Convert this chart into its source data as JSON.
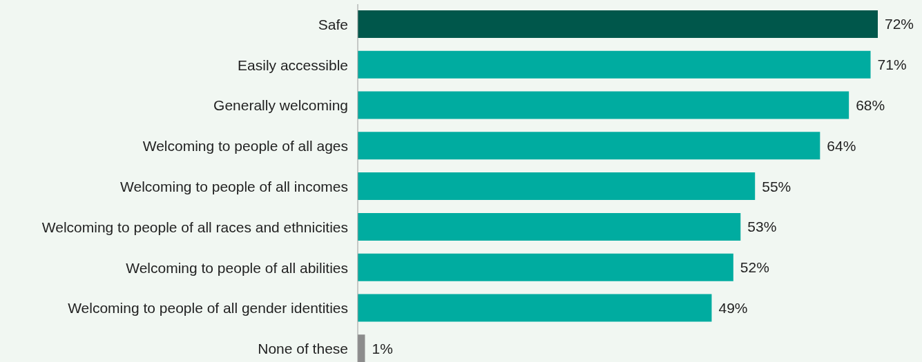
{
  "chart_data": {
    "type": "bar",
    "orientation": "horizontal",
    "categories": [
      "Safe",
      "Easily accessible",
      "Generally welcoming",
      "Welcoming to people of all ages",
      "Welcoming to people of all incomes",
      "Welcoming to people of all races and ethnicities",
      "Welcoming to people of all abilities",
      "Welcoming to people of all gender identities",
      "None of these"
    ],
    "values": [
      72,
      71,
      68,
      64,
      55,
      53,
      52,
      49,
      1
    ],
    "colors": [
      "#00574b",
      "#00aca0",
      "#00aca0",
      "#00aca0",
      "#00aca0",
      "#00aca0",
      "#00aca0",
      "#00aca0",
      "#8c8c8c"
    ],
    "value_labels": [
      "72%",
      "71%",
      "68%",
      "64%",
      "55%",
      "53%",
      "52%",
      "49%",
      "1%"
    ],
    "tick_labels": "y",
    "grid": false,
    "legend": false
  }
}
